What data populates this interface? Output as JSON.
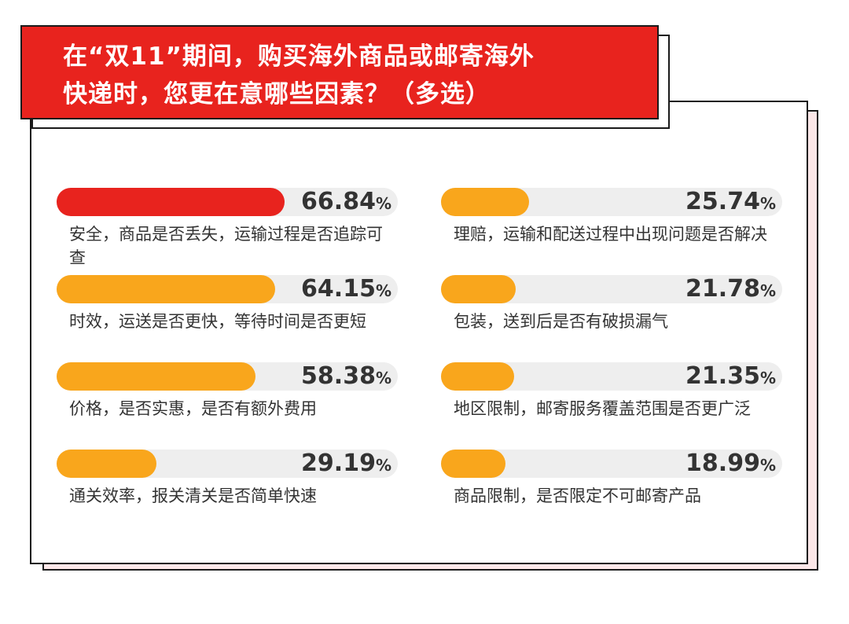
{
  "title": {
    "line1": "在“双11”期间，购买海外商品或邮寄海外",
    "line2": "快递时，您更在意哪些因素？（多选）"
  },
  "colors": {
    "highlight": "#e8231e",
    "bar": "#f9a61c",
    "track": "#eeeeee",
    "text": "#333333"
  },
  "chart_data": {
    "type": "bar",
    "unit": "%",
    "max": 100,
    "items": [
      {
        "label": "安全，商品是否丢失，运输过程是否追踪可查",
        "value": 66.84,
        "display": "66.84",
        "highlight": true
      },
      {
        "label": "时效，运送是否更快，等待时间是否更短",
        "value": 64.15,
        "display": "64.15",
        "highlight": false
      },
      {
        "label": "价格，是否实惠，是否有额外费用",
        "value": 58.38,
        "display": "58.38",
        "highlight": false
      },
      {
        "label": "通关效率，报关清关是否简单快速",
        "value": 29.19,
        "display": "29.19",
        "highlight": false
      },
      {
        "label": "理赔，运输和配送过程中出现问题是否解决",
        "value": 25.74,
        "display": "25.74",
        "highlight": false
      },
      {
        "label": "包装，送到后是否有破损漏气",
        "value": 21.78,
        "display": "21.78",
        "highlight": false
      },
      {
        "label": "地区限制，邮寄服务覆盖范围是否更广泛",
        "value": 21.35,
        "display": "21.35",
        "highlight": false
      },
      {
        "label": "商品限制，是否限定不可邮寄产品",
        "value": 18.99,
        "display": "18.99",
        "highlight": false
      }
    ]
  }
}
